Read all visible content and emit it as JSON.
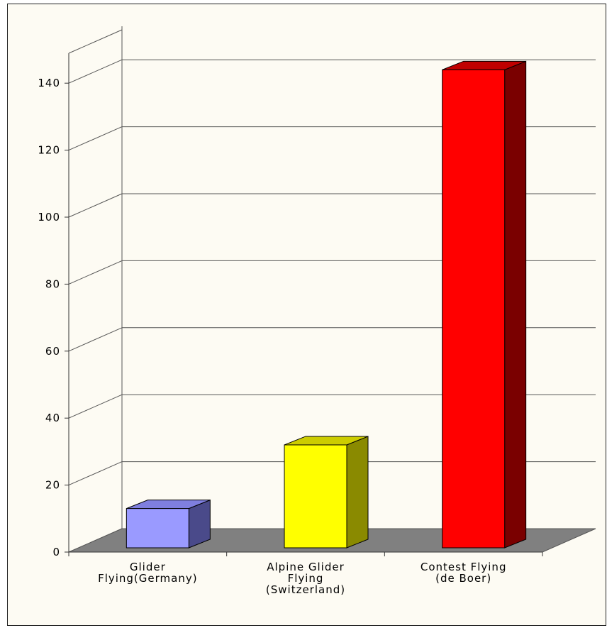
{
  "chart_data": {
    "type": "bar",
    "title": "",
    "xlabel": "",
    "ylabel": "",
    "categories": [
      [
        "Glider",
        "Flying(Germany)"
      ],
      [
        "Alpine Glider",
        "Flying",
        "(Switzerland)"
      ],
      [
        "Contest Flying",
        "(de Boer)"
      ]
    ],
    "values": [
      13,
      32,
      144
    ],
    "ylim": [
      0,
      150
    ],
    "yticks": [
      0,
      20,
      40,
      60,
      80,
      100,
      120,
      140
    ],
    "grid": true,
    "colors": [
      {
        "face": "#9a9aff",
        "side": "#4a4a8a",
        "top": "#7f7fdf"
      },
      {
        "face": "#ffff00",
        "side": "#8a8a00",
        "top": "#cccc00"
      },
      {
        "face": "#ff0000",
        "side": "#7a0000",
        "top": "#c00000"
      }
    ],
    "floor_color": "#808080",
    "background": "#fdfbf3"
  }
}
